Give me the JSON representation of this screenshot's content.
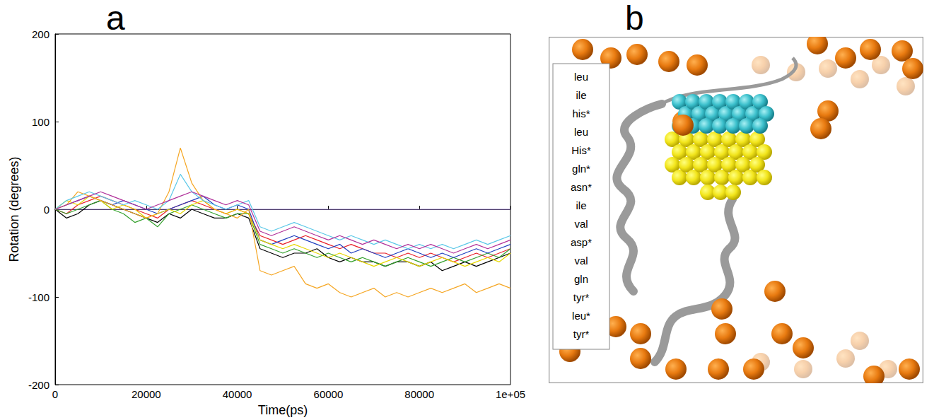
{
  "chart_data": {
    "type": "line",
    "xlabel": "Time(ps)",
    "ylabel": "Rotation (degrees)",
    "x": [
      0,
      2500,
      5000,
      7500,
      10000,
      12500,
      15000,
      17500,
      20000,
      22500,
      25000,
      27500,
      30000,
      32500,
      35000,
      37500,
      40000,
      42500,
      45000,
      47500,
      50000,
      52500,
      55000,
      57500,
      60000,
      62500,
      65000,
      67500,
      70000,
      72500,
      75000,
      77500,
      80000,
      82500,
      85000,
      87500,
      90000,
      92500,
      95000,
      97500,
      100000
    ],
    "series": [
      {
        "color": "#9b7fd4",
        "values": [
          0,
          0,
          0,
          0,
          0,
          0,
          0,
          0,
          0,
          0,
          0,
          0,
          0,
          0,
          0,
          0,
          0,
          0,
          0,
          0,
          0,
          0,
          0,
          0,
          0,
          0,
          0,
          0,
          0,
          0,
          0,
          0,
          0,
          0,
          0,
          0,
          0,
          0,
          0,
          0,
          0
        ]
      },
      {
        "color": "#000000",
        "values": [
          0,
          -10,
          -5,
          5,
          10,
          5,
          0,
          -5,
          -10,
          -15,
          -5,
          -10,
          0,
          -5,
          -10,
          -10,
          -5,
          -10,
          -45,
          -50,
          -55,
          -50,
          -50,
          -45,
          -55,
          -60,
          -55,
          -60,
          -60,
          -65,
          -60,
          -60,
          -65,
          -60,
          -70,
          -65,
          -60,
          -65,
          -60,
          -55,
          -50
        ]
      },
      {
        "color": "#e8202a",
        "values": [
          0,
          -5,
          5,
          10,
          15,
          10,
          5,
          0,
          -5,
          -10,
          0,
          5,
          10,
          5,
          0,
          -5,
          0,
          -5,
          -30,
          -35,
          -40,
          -35,
          -30,
          -35,
          -40,
          -45,
          -40,
          -45,
          -50,
          -50,
          -55,
          -50,
          -55,
          -50,
          -55,
          -60,
          -55,
          -50,
          -55,
          -50,
          -45
        ]
      },
      {
        "color": "#33a02c",
        "values": [
          0,
          -5,
          0,
          5,
          10,
          0,
          -5,
          -15,
          -10,
          -20,
          -5,
          0,
          5,
          0,
          -5,
          -10,
          -5,
          -5,
          -40,
          -45,
          -50,
          -45,
          -50,
          -55,
          -50,
          -55,
          -60,
          -55,
          -60,
          -65,
          -60,
          -55,
          -60,
          -65,
          -60,
          -55,
          -60,
          -55,
          -50,
          -55,
          -45
        ]
      },
      {
        "color": "#1f3fbf",
        "values": [
          0,
          5,
          10,
          15,
          10,
          5,
          10,
          5,
          0,
          -5,
          0,
          5,
          10,
          15,
          5,
          0,
          5,
          0,
          -35,
          -40,
          -35,
          -30,
          -35,
          -40,
          -45,
          -40,
          -50,
          -45,
          -50,
          -55,
          -50,
          -45,
          -50,
          -55,
          -50,
          -55,
          -50,
          -45,
          -50,
          -45,
          -40
        ]
      },
      {
        "color": "#e6d700",
        "values": [
          0,
          10,
          5,
          15,
          10,
          0,
          5,
          0,
          -10,
          -5,
          0,
          -5,
          5,
          10,
          0,
          -5,
          0,
          -5,
          -35,
          -40,
          -45,
          -40,
          -45,
          -50,
          -55,
          -50,
          -55,
          -60,
          -65,
          -60,
          -55,
          -60,
          -65,
          -60,
          -55,
          -60,
          -65,
          -60,
          -55,
          -60,
          -50
        ]
      },
      {
        "color": "#f5a623",
        "values": [
          0,
          5,
          20,
          15,
          10,
          5,
          0,
          -5,
          -10,
          -5,
          20,
          70,
          30,
          10,
          0,
          -5,
          -10,
          0,
          -70,
          -75,
          -70,
          -65,
          -85,
          -90,
          -85,
          -95,
          -100,
          -95,
          -90,
          -100,
          -95,
          -100,
          -95,
          -90,
          -95,
          -90,
          -85,
          -95,
          -90,
          -85,
          -90
        ]
      },
      {
        "color": "#5bc8e8",
        "values": [
          0,
          10,
          15,
          20,
          15,
          10,
          5,
          10,
          5,
          0,
          10,
          40,
          20,
          10,
          5,
          0,
          5,
          10,
          -20,
          -25,
          -20,
          -15,
          -20,
          -25,
          -30,
          -35,
          -30,
          -35,
          -40,
          -35,
          -40,
          -45,
          -40,
          -45,
          -40,
          -45,
          -40,
          -35,
          -40,
          -35,
          -30
        ]
      },
      {
        "color": "#b0309a",
        "values": [
          0,
          5,
          10,
          15,
          20,
          15,
          10,
          5,
          0,
          5,
          10,
          15,
          20,
          15,
          10,
          5,
          10,
          5,
          -25,
          -30,
          -25,
          -20,
          -25,
          -30,
          -35,
          -30,
          -35,
          -40,
          -35,
          -40,
          -45,
          -40,
          -45,
          -40,
          -45,
          -50,
          -45,
          -40,
          -45,
          -40,
          -35
        ]
      }
    ],
    "xlim": [
      0,
      100000
    ],
    "xticks": [
      0,
      20000,
      40000,
      60000,
      80000,
      {
        "value": 100000,
        "label": "1e+05"
      }
    ],
    "ylim": [
      -200,
      200
    ],
    "yticks": [
      -200,
      -100,
      0,
      100,
      200
    ],
    "grid": false
  },
  "panel_labels": [
    "a",
    "b"
  ],
  "structure_panel": {
    "residue_list": [
      "leu",
      "ile",
      "his*",
      "leu",
      "His*",
      "gln*",
      "asn*",
      "ile",
      "val",
      "asp*",
      "val",
      "gln",
      "tyr*",
      "leu*",
      "tyr*"
    ]
  }
}
